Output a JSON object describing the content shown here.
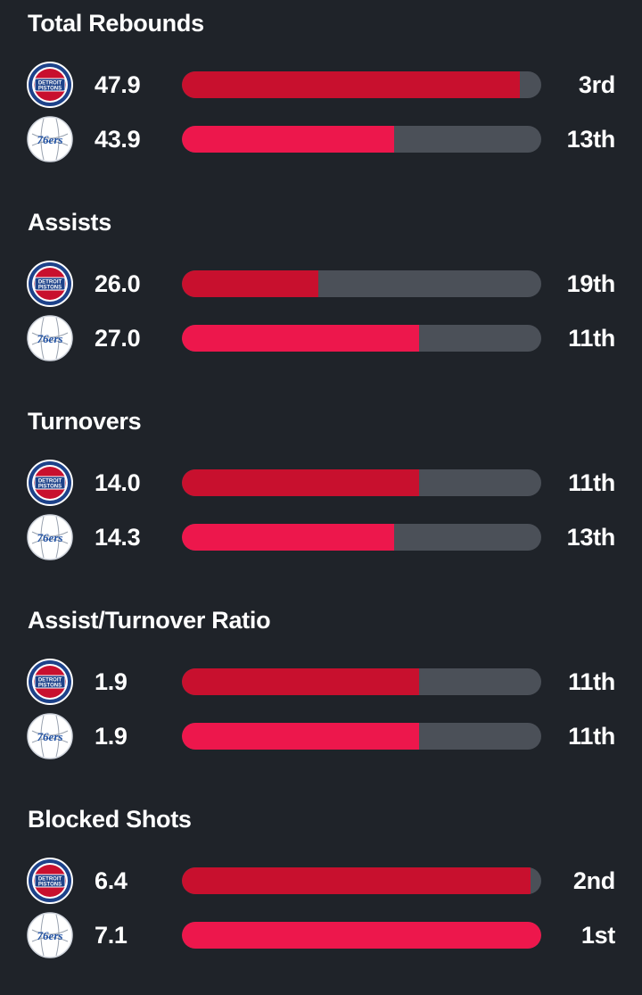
{
  "colors": {
    "background": "#1f2329",
    "track": "#4b5058",
    "pistons_bar": "#c8102e",
    "sixers_bar": "#ed174c"
  },
  "teams": {
    "pistons": {
      "logo_icon": "detroit-pistons-logo-icon",
      "logo_text_top": "DETROIT",
      "logo_text_bottom": "PISTONS"
    },
    "sixers": {
      "logo_icon": "philadelphia-76ers-logo-icon",
      "logo_text": "76ers"
    }
  },
  "stats": [
    {
      "title": "Total Rebounds",
      "rows": [
        {
          "team": "pistons",
          "value": "47.9",
          "rank": "3rd",
          "fill": 0.94
        },
        {
          "team": "sixers",
          "value": "43.9",
          "rank": "13th",
          "fill": 0.59
        }
      ]
    },
    {
      "title": "Assists",
      "rows": [
        {
          "team": "pistons",
          "value": "26.0",
          "rank": "19th",
          "fill": 0.38
        },
        {
          "team": "sixers",
          "value": "27.0",
          "rank": "11th",
          "fill": 0.66
        }
      ]
    },
    {
      "title": "Turnovers",
      "rows": [
        {
          "team": "pistons",
          "value": "14.0",
          "rank": "11th",
          "fill": 0.66
        },
        {
          "team": "sixers",
          "value": "14.3",
          "rank": "13th",
          "fill": 0.59
        }
      ]
    },
    {
      "title": "Assist/Turnover Ratio",
      "rows": [
        {
          "team": "pistons",
          "value": "1.9",
          "rank": "11th",
          "fill": 0.66
        },
        {
          "team": "sixers",
          "value": "1.9",
          "rank": "11th",
          "fill": 0.66
        }
      ]
    },
    {
      "title": "Blocked Shots",
      "rows": [
        {
          "team": "pistons",
          "value": "6.4",
          "rank": "2nd",
          "fill": 0.97
        },
        {
          "team": "sixers",
          "value": "7.1",
          "rank": "1st",
          "fill": 1.0
        }
      ]
    }
  ]
}
